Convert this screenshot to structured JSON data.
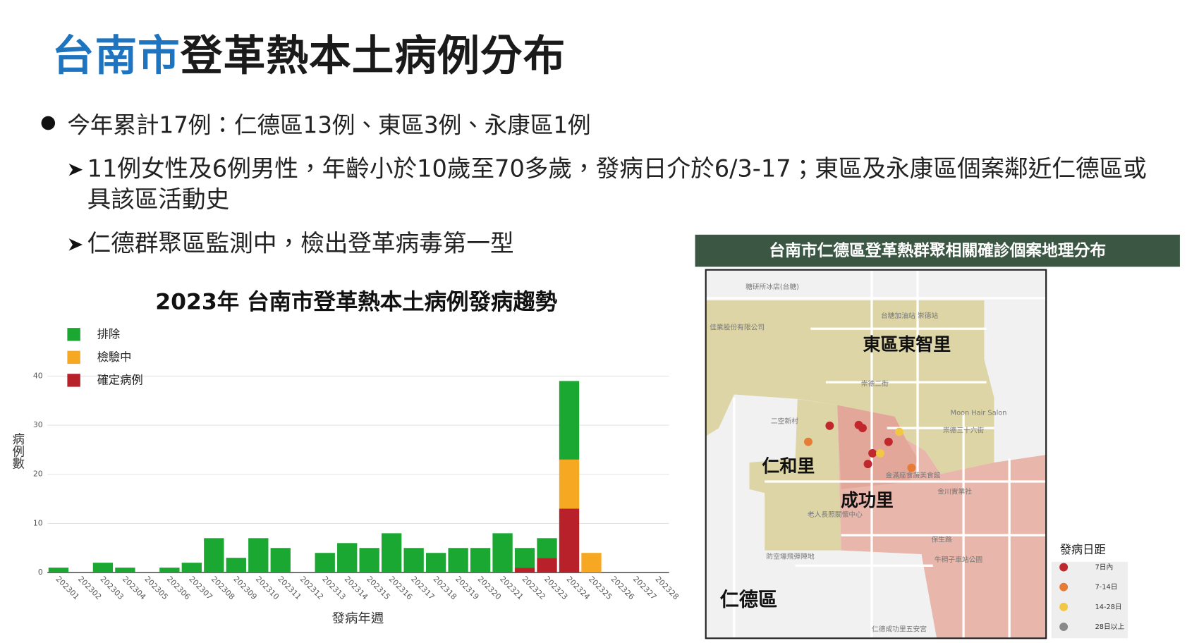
{
  "header": {
    "title_highlight": "台南市",
    "title": "登革熱本土病例分布"
  },
  "bullets": [
    {
      "text": "今年累計17例：仁德區13例、東區3例、永康區1例",
      "sub": [
        "11例女性及6例男性，年齡小於10歲至70多歲，發病日介於6/3-17；東區及永康區個案鄰近仁德區或具該區活動史",
        "仁德群聚區監測中，檢出登革病毒第一型"
      ]
    }
  ],
  "chart_data": {
    "type": "bar",
    "stacked": true,
    "title": "2023年 台南市登革熱本土病例發病趨勢",
    "x_label": "發病年週",
    "y_label": "病例數",
    "categories": [
      "202301",
      "202302",
      "202303",
      "202304",
      "202305",
      "202306",
      "202307",
      "202308",
      "202309",
      "202310",
      "202311",
      "202312",
      "202313",
      "202314",
      "202315",
      "202316",
      "202317",
      "202318",
      "202319",
      "202320",
      "202321",
      "202322",
      "202323",
      "202324",
      "202325",
      "202326",
      "202327",
      "202328"
    ],
    "series": [
      {
        "name": "排除",
        "color": "#1aa832",
        "values": [
          1,
          0,
          2,
          1,
          0,
          1,
          2,
          7,
          3,
          7,
          5,
          0,
          4,
          6,
          5,
          8,
          5,
          4,
          5,
          5,
          8,
          4,
          4,
          16,
          0,
          0,
          0,
          0
        ]
      },
      {
        "name": "檢驗中",
        "color": "#f7a823",
        "values": [
          0,
          0,
          0,
          0,
          0,
          0,
          0,
          0,
          0,
          0,
          0,
          0,
          0,
          0,
          0,
          0,
          0,
          0,
          0,
          0,
          0,
          0,
          0,
          10,
          4,
          0,
          0,
          0
        ]
      },
      {
        "name": "確定病例",
        "color": "#b8202a",
        "values": [
          0,
          0,
          0,
          0,
          0,
          0,
          0,
          0,
          0,
          0,
          0,
          0,
          0,
          0,
          0,
          0,
          0,
          0,
          0,
          0,
          0,
          1,
          3,
          13,
          0,
          0,
          0,
          0
        ]
      }
    ],
    "ylim": [
      0,
      40
    ],
    "yticks": [
      0,
      10,
      20,
      30,
      40
    ],
    "grid": true,
    "legend": "upper-left"
  },
  "map": {
    "title": "台南市仁德區登革熱群聚相關確診個案地理分布",
    "areas": [
      "東區東智里",
      "仁和里",
      "成功里",
      "仁德區"
    ],
    "places": [
      "糖研所冰店(台糖)",
      "台糖加油站 崇德站",
      "佳業股份有限公司",
      "Moon Hair Salon",
      "金滿座食蔬美食館",
      "金川實業社",
      "牛稠子車站公園",
      "仁德成功里五安宮",
      "防空壕飛彈陣地",
      "老人長照關懷中心",
      "二空新村",
      "保生路",
      "崇德二街",
      "崇德三十六街"
    ],
    "legend": {
      "title": "發病日距",
      "items": [
        {
          "label": "7日內",
          "color": "#c0282d"
        },
        {
          "label": "7-14日",
          "color": "#e67c36"
        },
        {
          "label": "14-28日",
          "color": "#f2c744"
        },
        {
          "label": "28日以上",
          "color": "#8a8a8a"
        }
      ]
    }
  }
}
